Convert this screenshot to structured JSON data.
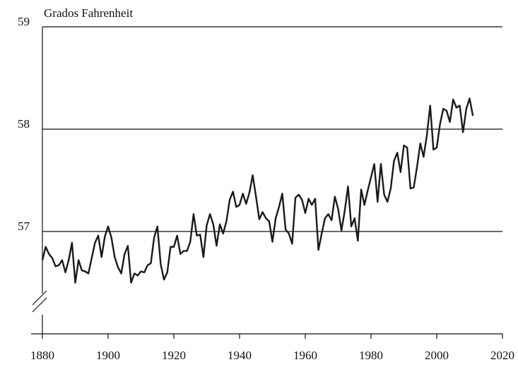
{
  "chart_data": {
    "type": "line",
    "y_label": "Grados Fahrenheit",
    "x": [
      1880,
      1881,
      1882,
      1883,
      1884,
      1885,
      1886,
      1887,
      1888,
      1889,
      1890,
      1891,
      1892,
      1893,
      1894,
      1895,
      1896,
      1897,
      1898,
      1899,
      1900,
      1901,
      1902,
      1903,
      1904,
      1905,
      1906,
      1907,
      1908,
      1909,
      1910,
      1911,
      1912,
      1913,
      1914,
      1915,
      1916,
      1917,
      1918,
      1919,
      1920,
      1921,
      1922,
      1923,
      1924,
      1925,
      1926,
      1927,
      1928,
      1929,
      1930,
      1931,
      1932,
      1933,
      1934,
      1935,
      1936,
      1937,
      1938,
      1939,
      1940,
      1941,
      1942,
      1943,
      1944,
      1945,
      1946,
      1947,
      1948,
      1949,
      1950,
      1951,
      1952,
      1953,
      1954,
      1955,
      1956,
      1957,
      1958,
      1959,
      1960,
      1961,
      1962,
      1963,
      1964,
      1965,
      1966,
      1967,
      1968,
      1969,
      1970,
      1971,
      1972,
      1973,
      1974,
      1975,
      1976,
      1977,
      1978,
      1979,
      1980,
      1981,
      1982,
      1983,
      1984,
      1985,
      1986,
      1987,
      1988,
      1989,
      1990,
      1991,
      1992,
      1993,
      1994,
      1995,
      1996,
      1997,
      1998,
      1999,
      2000,
      2001,
      2002,
      2003,
      2004,
      2005,
      2006,
      2007,
      2008,
      2009,
      2010,
      2011
    ],
    "series": [
      {
        "color": "#1a1a1a",
        "values": [
          56.72,
          56.85,
          56.78,
          56.74,
          56.66,
          56.67,
          56.72,
          56.6,
          56.72,
          56.89,
          56.5,
          56.72,
          56.62,
          56.61,
          56.59,
          56.74,
          56.89,
          56.96,
          56.75,
          56.95,
          57.05,
          56.94,
          56.75,
          56.65,
          56.59,
          56.78,
          56.86,
          56.5,
          56.59,
          56.57,
          56.61,
          56.6,
          56.67,
          56.69,
          56.94,
          57.05,
          56.68,
          56.53,
          56.6,
          56.85,
          56.85,
          56.96,
          56.78,
          56.81,
          56.81,
          56.9,
          57.17,
          56.96,
          56.97,
          56.75,
          57.06,
          57.17,
          57.07,
          56.86,
          57.07,
          56.98,
          57.1,
          57.31,
          57.39,
          57.24,
          57.26,
          57.37,
          57.27,
          57.38,
          57.55,
          57.34,
          57.12,
          57.19,
          57.13,
          57.1,
          56.9,
          57.13,
          57.24,
          57.37,
          57.02,
          56.98,
          56.88,
          57.33,
          57.36,
          57.31,
          57.18,
          57.32,
          57.26,
          57.32,
          56.82,
          56.98,
          57.13,
          57.17,
          57.11,
          57.34,
          57.22,
          57.01,
          57.2,
          57.44,
          57.05,
          57.13,
          56.91,
          57.41,
          57.26,
          57.4,
          57.53,
          57.66,
          57.29,
          57.66,
          57.36,
          57.29,
          57.42,
          57.69,
          57.77,
          57.58,
          57.84,
          57.82,
          57.42,
          57.43,
          57.63,
          57.86,
          57.73,
          57.94,
          58.23,
          57.8,
          57.82,
          58.05,
          58.2,
          58.18,
          58.07,
          58.29,
          58.21,
          58.23,
          57.97,
          58.2,
          58.3,
          58.13
        ]
      }
    ],
    "xlim": [
      1880,
      2020
    ],
    "xticks": [
      1880,
      1900,
      1920,
      1940,
      1960,
      1980,
      2000,
      2020
    ],
    "ylim": [
      56,
      59
    ],
    "yticks": [
      57,
      58,
      59
    ],
    "grid": true
  }
}
